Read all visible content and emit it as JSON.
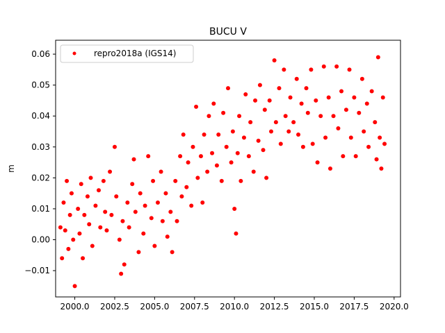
{
  "chart_data": {
    "type": "scatter",
    "title": "BUCU V",
    "xlabel": "",
    "ylabel": "m",
    "xlim": [
      1998.8,
      2020.4
    ],
    "ylim": [
      -0.0185,
      0.0645
    ],
    "xticks": [
      2000.0,
      2002.5,
      2005.0,
      2007.5,
      2010.0,
      2012.5,
      2015.0,
      2017.5,
      2020.0
    ],
    "xtick_labels": [
      "2000.0",
      "2002.5",
      "2005.0",
      "2007.5",
      "2010.0",
      "2012.5",
      "2015.0",
      "2017.5",
      "2020.0"
    ],
    "yticks": [
      -0.01,
      0.0,
      0.01,
      0.02,
      0.03,
      0.04,
      0.05,
      0.06
    ],
    "ytick_labels": [
      "−0.01",
      "0.00",
      "0.01",
      "0.02",
      "0.03",
      "0.04",
      "0.05",
      "0.06"
    ],
    "grid": false,
    "legend": {
      "position": "upper-left",
      "entries": [
        "repro2018a (IGS14)"
      ]
    },
    "color": "#ff0000",
    "series": [
      {
        "name": "repro2018a (IGS14)",
        "color": "#ff0000",
        "points": [
          [
            1999.1,
            0.004
          ],
          [
            1999.2,
            -0.006
          ],
          [
            1999.3,
            0.012
          ],
          [
            1999.4,
            0.003
          ],
          [
            1999.5,
            0.019
          ],
          [
            1999.6,
            -0.003
          ],
          [
            1999.7,
            0.008
          ],
          [
            1999.8,
            0.015
          ],
          [
            1999.9,
            0.0
          ],
          [
            2000.0,
            -0.015
          ],
          [
            2000.2,
            0.01
          ],
          [
            2000.3,
            0.002
          ],
          [
            2000.4,
            0.018
          ],
          [
            2000.5,
            -0.006
          ],
          [
            2000.6,
            0.008
          ],
          [
            2000.8,
            0.014
          ],
          [
            2000.9,
            0.005
          ],
          [
            2001.0,
            0.02
          ],
          [
            2001.1,
            -0.002
          ],
          [
            2001.3,
            0.011
          ],
          [
            2001.5,
            0.016
          ],
          [
            2001.6,
            0.004
          ],
          [
            2001.8,
            0.019
          ],
          [
            2001.9,
            0.009
          ],
          [
            2002.0,
            0.003
          ],
          [
            2002.2,
            0.022
          ],
          [
            2002.3,
            0.008
          ],
          [
            2002.5,
            0.03
          ],
          [
            2002.6,
            0.014
          ],
          [
            2002.8,
            0.0
          ],
          [
            2002.9,
            -0.011
          ],
          [
            2003.0,
            0.006
          ],
          [
            2003.1,
            -0.008
          ],
          [
            2003.3,
            0.012
          ],
          [
            2003.4,
            0.004
          ],
          [
            2003.6,
            0.018
          ],
          [
            2003.7,
            0.026
          ],
          [
            2003.8,
            0.009
          ],
          [
            2004.0,
            -0.004
          ],
          [
            2004.1,
            0.015
          ],
          [
            2004.3,
            0.002
          ],
          [
            2004.4,
            0.011
          ],
          [
            2004.6,
            0.027
          ],
          [
            2004.8,
            0.007
          ],
          [
            2004.9,
            0.019
          ],
          [
            2005.0,
            -0.002
          ],
          [
            2005.2,
            0.012
          ],
          [
            2005.4,
            0.022
          ],
          [
            2005.5,
            0.006
          ],
          [
            2005.7,
            0.015
          ],
          [
            2005.8,
            0.001
          ],
          [
            2006.0,
            0.009
          ],
          [
            2006.1,
            -0.004
          ],
          [
            2006.3,
            0.019
          ],
          [
            2006.4,
            0.006
          ],
          [
            2006.6,
            0.027
          ],
          [
            2006.7,
            0.014
          ],
          [
            2006.8,
            0.034
          ],
          [
            2007.0,
            0.017
          ],
          [
            2007.1,
            0.025
          ],
          [
            2007.3,
            0.011
          ],
          [
            2007.4,
            0.03
          ],
          [
            2007.6,
            0.043
          ],
          [
            2007.7,
            0.02
          ],
          [
            2007.9,
            0.027
          ],
          [
            2008.0,
            0.012
          ],
          [
            2008.1,
            0.034
          ],
          [
            2008.3,
            0.022
          ],
          [
            2008.4,
            0.04
          ],
          [
            2008.6,
            0.028
          ],
          [
            2008.7,
            0.044
          ],
          [
            2008.9,
            0.024
          ],
          [
            2009.0,
            0.034
          ],
          [
            2009.2,
            0.019
          ],
          [
            2009.3,
            0.041
          ],
          [
            2009.5,
            0.03
          ],
          [
            2009.6,
            0.049
          ],
          [
            2009.8,
            0.025
          ],
          [
            2009.9,
            0.035
          ],
          [
            2010.0,
            0.01
          ],
          [
            2010.1,
            0.002
          ],
          [
            2010.2,
            0.028
          ],
          [
            2010.3,
            0.04
          ],
          [
            2010.4,
            0.019
          ],
          [
            2010.6,
            0.033
          ],
          [
            2010.7,
            0.047
          ],
          [
            2010.9,
            0.027
          ],
          [
            2011.0,
            0.038
          ],
          [
            2011.2,
            0.022
          ],
          [
            2011.3,
            0.045
          ],
          [
            2011.5,
            0.032
          ],
          [
            2011.6,
            0.05
          ],
          [
            2011.8,
            0.029
          ],
          [
            2011.9,
            0.042
          ],
          [
            2012.0,
            0.02
          ],
          [
            2012.2,
            0.045
          ],
          [
            2012.3,
            0.035
          ],
          [
            2012.5,
            0.058
          ],
          [
            2012.6,
            0.038
          ],
          [
            2012.8,
            0.049
          ],
          [
            2012.9,
            0.031
          ],
          [
            2013.1,
            0.055
          ],
          [
            2013.2,
            0.04
          ],
          [
            2013.4,
            0.035
          ],
          [
            2013.5,
            0.046
          ],
          [
            2013.7,
            0.038
          ],
          [
            2013.9,
            0.052
          ],
          [
            2014.0,
            0.034
          ],
          [
            2014.2,
            0.044
          ],
          [
            2014.3,
            0.03
          ],
          [
            2014.5,
            0.049
          ],
          [
            2014.6,
            0.041
          ],
          [
            2014.8,
            0.055
          ],
          [
            2014.9,
            0.031
          ],
          [
            2015.1,
            0.045
          ],
          [
            2015.2,
            0.025
          ],
          [
            2015.4,
            0.04
          ],
          [
            2015.6,
            0.056
          ],
          [
            2015.7,
            0.033
          ],
          [
            2015.9,
            0.046
          ],
          [
            2016.0,
            0.023
          ],
          [
            2016.2,
            0.04
          ],
          [
            2016.4,
            0.056
          ],
          [
            2016.5,
            0.036
          ],
          [
            2016.7,
            0.048
          ],
          [
            2016.8,
            0.027
          ],
          [
            2017.0,
            0.042
          ],
          [
            2017.2,
            0.055
          ],
          [
            2017.3,
            0.033
          ],
          [
            2017.5,
            0.046
          ],
          [
            2017.6,
            0.027
          ],
          [
            2017.8,
            0.041
          ],
          [
            2018.0,
            0.052
          ],
          [
            2018.1,
            0.035
          ],
          [
            2018.3,
            0.044
          ],
          [
            2018.4,
            0.03
          ],
          [
            2018.6,
            0.048
          ],
          [
            2018.8,
            0.038
          ],
          [
            2018.9,
            0.026
          ],
          [
            2019.0,
            0.059
          ],
          [
            2019.1,
            0.033
          ],
          [
            2019.2,
            0.023
          ],
          [
            2019.3,
            0.046
          ],
          [
            2019.4,
            0.031
          ]
        ]
      }
    ]
  }
}
